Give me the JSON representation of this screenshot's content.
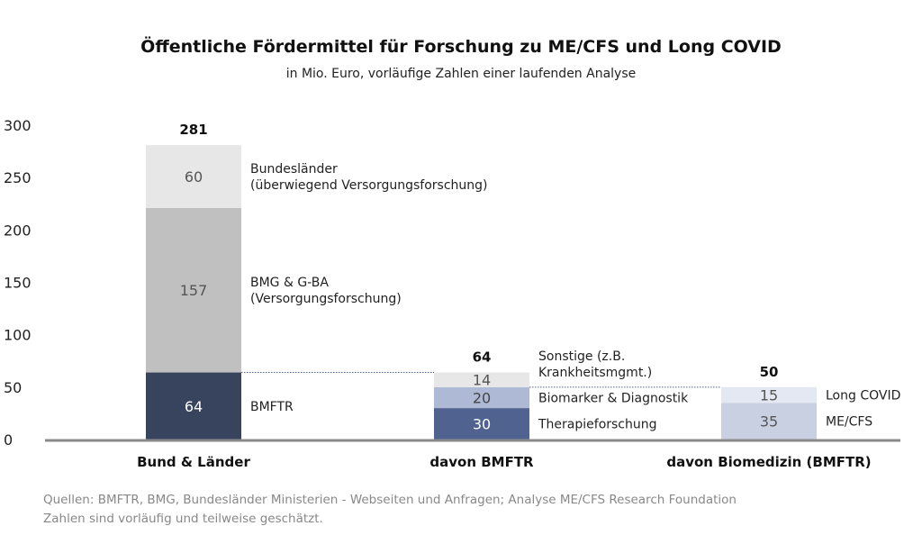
{
  "chart_data": {
    "type": "bar",
    "stacked": true,
    "title": "Öffentliche Fördermittel für Forschung zu ME/CFS und Long COVID",
    "subtitle": "in Mio. Euro, vorläufige Zahlen einer laufenden Analyse",
    "ylim": [
      0,
      300
    ],
    "yticks": [
      "0",
      "50",
      "100",
      "150",
      "200",
      "250",
      "300"
    ],
    "yticks_values": [
      0,
      50,
      100,
      150,
      200,
      250,
      300
    ],
    "grid": false,
    "categories": [
      "Bund & Länder",
      "davon BMFTR",
      "davon Biomedizin (BMFTR)"
    ],
    "totals": [
      "281",
      "64",
      "50"
    ],
    "bars": [
      {
        "segments": [
          {
            "name": [
              "BMFTR"
            ],
            "value": 64,
            "label": "64",
            "color": "#38445e",
            "text_color": "#ffffff"
          },
          {
            "name": [
              "BMG & G-BA",
              "(Versorgungsforschung)"
            ],
            "value": 157,
            "label": "157",
            "color": "#c0c0c0",
            "text_color": "#555555"
          },
          {
            "name": [
              "Bundesländer",
              "(überwiegend Versorgungsforschung)"
            ],
            "value": 60,
            "label": "60",
            "color": "#e7e7e7",
            "text_color": "#555555"
          }
        ]
      },
      {
        "segments": [
          {
            "name": [
              "Therapieforschung"
            ],
            "value": 30,
            "label": "30",
            "color": "#4f6290",
            "text_color": "#ffffff"
          },
          {
            "name": [
              "Biomarker & Diagnostik"
            ],
            "value": 20,
            "label": "20",
            "color": "#aebad5",
            "text_color": "#444444"
          },
          {
            "name": [
              "Sonstige (z.B.",
              "Krankheitsmgmt.)"
            ],
            "value": 14,
            "label": "14",
            "color": "#e7e7e7",
            "text_color": "#555555"
          }
        ]
      },
      {
        "segments": [
          {
            "name": [
              "ME/CFS"
            ],
            "value": 35,
            "label": "35",
            "color": "#c9d0e2",
            "text_color": "#555555"
          },
          {
            "name": [
              "Long COVID"
            ],
            "value": 15,
            "label": "15",
            "color": "#e4e8f2",
            "text_color": "#555555"
          }
        ]
      }
    ],
    "source_lines": [
      "Quellen: BMFTR, BMG, Bundesländer Ministerien - Webseiten und Anfragen; Analyse ME/CFS Research Foundation",
      "Zahlen sind vorläufig und teilweise geschätzt."
    ]
  }
}
